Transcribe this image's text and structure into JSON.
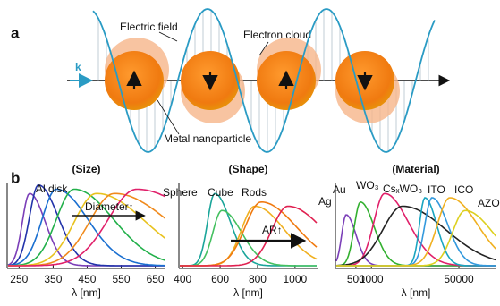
{
  "panel_a": {
    "label": "a",
    "k": "k",
    "electric_field": "Electric field",
    "electron_cloud": "Electron cloud",
    "metal_nanoparticle": "Metal nanoparticle"
  },
  "panel_b": {
    "label": "b",
    "plots": [
      {
        "title": "(Size)",
        "xlabel": "λ [nm]",
        "xlim": [
          215,
          680
        ],
        "xticks": [
          250,
          350,
          450,
          550,
          650
        ],
        "annotations": [
          "Al disk",
          "Diameter↑"
        ]
      },
      {
        "title": "(Shape)",
        "xlabel": "λ [nm]",
        "xlim": [
          380,
          1120
        ],
        "xticks": [
          400,
          600,
          800,
          1000
        ],
        "annotations": [
          "Sphere",
          "Cube",
          "Rods",
          "AR↑"
        ]
      },
      {
        "title": "(Material)",
        "xlabel": "λ [nm]",
        "log_scale": true,
        "xlim": [
          200,
          268000
        ],
        "xticks": [
          500,
          1000,
          50000
        ],
        "annotations": [
          "Ag",
          "Au",
          "WO₃",
          "CsₓWO₃",
          "ITO",
          "ICO",
          "AZO"
        ]
      }
    ]
  }
}
